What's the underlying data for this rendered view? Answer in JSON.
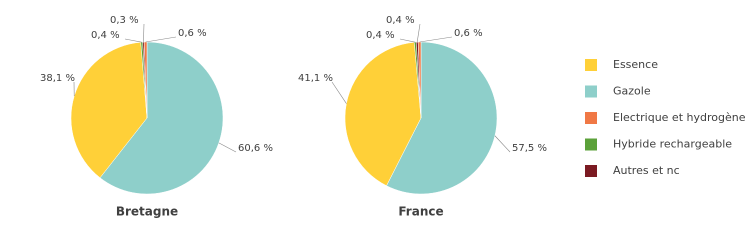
{
  "chart_data": [
    {
      "type": "pie",
      "title": "Bretagne",
      "categories": [
        "Essence",
        "Gazole",
        "Electrique et hydrogène",
        "Hybride rechargeable",
        "Autres et nc"
      ],
      "values": [
        38.1,
        60.6,
        0.6,
        0.4,
        0.3
      ],
      "value_labels": [
        "38,1 %",
        "60,6 %",
        "0,6 %",
        "0,4 %",
        "0,3 %"
      ],
      "colors": [
        "#FFD038",
        "#8ECFCA",
        "#F07845",
        "#5BA13A",
        "#7B1A22"
      ]
    },
    {
      "type": "pie",
      "title": "France",
      "categories": [
        "Essence",
        "Gazole",
        "Electrique et hydrogène",
        "Hybride rechargeable",
        "Autres et nc"
      ],
      "values": [
        41.1,
        57.5,
        0.6,
        0.4,
        0.4
      ],
      "value_labels": [
        "41,1 %",
        "57,5 %",
        "0,6 %",
        "0,4 %",
        "0,4 %"
      ],
      "colors": [
        "#FFD038",
        "#8ECFCA",
        "#F07845",
        "#5BA13A",
        "#7B1A22"
      ]
    }
  ]
}
